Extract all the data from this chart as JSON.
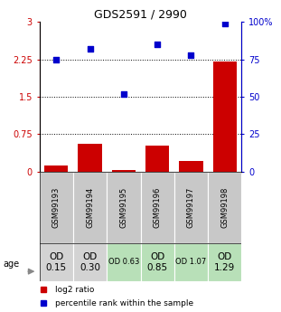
{
  "title": "GDS2591 / 2990",
  "samples": [
    "GSM99193",
    "GSM99194",
    "GSM99195",
    "GSM99196",
    "GSM99197",
    "GSM99198"
  ],
  "log2_ratio": [
    0.12,
    0.55,
    0.04,
    0.52,
    0.22,
    2.2
  ],
  "percentile_rank": [
    75,
    82,
    52,
    85,
    78,
    99
  ],
  "bar_color": "#cc0000",
  "dot_color": "#0000cc",
  "left_yticks": [
    0,
    0.75,
    1.5,
    2.25,
    3
  ],
  "right_yticks": [
    0,
    25,
    50,
    75,
    100
  ],
  "left_ylim": [
    0,
    3
  ],
  "right_ylim": [
    0,
    100
  ],
  "dotted_lines": [
    0.75,
    1.5,
    2.25
  ],
  "age_labels": [
    "OD\n0.15",
    "OD\n0.30",
    "OD 0.63",
    "OD\n0.85",
    "OD 1.07",
    "OD\n1.29"
  ],
  "age_bg_colors": [
    "#d3d3d3",
    "#d3d3d3",
    "#b8e0b8",
    "#b8e0b8",
    "#b8e0b8",
    "#b8e0b8"
  ],
  "age_font_sizes": [
    7.5,
    7.5,
    6,
    7.5,
    6,
    7.5
  ],
  "sample_bg_color": "#c8c8c8",
  "legend_log2_color": "#cc0000",
  "legend_pct_color": "#0000cc",
  "left_axis_color": "#cc0000",
  "right_axis_color": "#0000cc",
  "title_fontsize": 9
}
